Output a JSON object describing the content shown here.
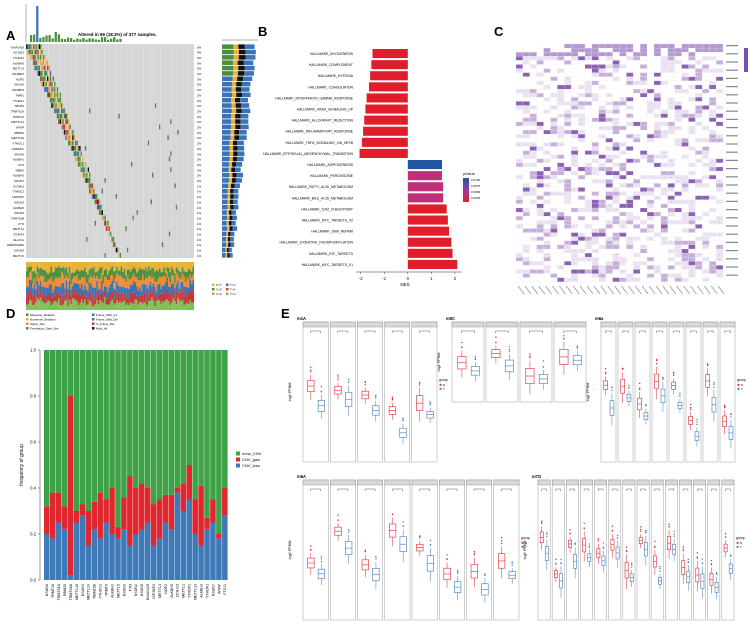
{
  "panels": {
    "A": {
      "letter": "A",
      "summary": "Altered in 69 (18.3%) of 377 samples.",
      "genes": [
        "KIAA1429",
        "ZC3H13",
        "YTHDF2",
        "ALKBH5",
        "METTL3",
        "IGF2BP2",
        "NOP2",
        "NSUN2",
        "IGF2BP3",
        "FMR1",
        "YTHDF1",
        "TRMT6",
        "TRMT61A",
        "TRMT10",
        "METTL14",
        "WTAP",
        "RBM15",
        "METTL16",
        "YTHDC1",
        "HNRNPC",
        "NSUN6",
        "ALKBH1",
        "FTO",
        "RBMX",
        "ALKBH3",
        "NSUN7",
        "ZC3H13",
        "YTHDC2",
        "LRPPRC",
        "NSUN3",
        "ALKBH5",
        "NSUN4",
        "TRMT61B",
        "FTO",
        "METTL1",
        "YTHDF3",
        "ELAVL1",
        "HNRNPA2B1",
        "NSUN5",
        "METTL5"
      ],
      "percents": [
        "5%",
        "4%",
        "3%",
        "3%",
        "3%",
        "3%",
        "2%",
        "2%",
        "2%",
        "2%",
        "2%",
        "2%",
        "2%",
        "2%",
        "2%",
        "2%",
        "2%",
        "2%",
        "2%",
        "2%",
        "2%",
        "2%",
        "2%",
        "2%",
        "2%",
        "2%",
        "1%",
        "1%",
        "1%",
        "1%",
        "1%",
        "1%",
        "1%",
        "1%",
        "1%",
        "1%",
        "1%",
        "1%",
        "1%",
        "1%"
      ],
      "legend_variants": [
        "Missense_Mutation",
        "Nonsense_Mutation",
        "Splice_Site",
        "Translation_Start_Site",
        "Frame_Shift_Ins",
        "Frame_Shift_Del",
        "In_Frame_Del",
        "Multi_Hit"
      ],
      "legend_snv": [
        "C>T",
        "C>G",
        "C>A",
        "T>C",
        "T>A",
        "T>G"
      ],
      "colors": {
        "missense": "#4b8e3e",
        "nonsense": "#e8b23a",
        "splice": "#f08a33",
        "multi": "#111111",
        "frameshift": "#3a73b7",
        "inframe": "#c43b3b",
        "bg": "#d6d6d6"
      }
    },
    "B": {
      "letter": "B",
      "xlabel": "NES",
      "legend_title": "pvalue",
      "legend_ticks": [
        "0.0100",
        "0.0075",
        "0.0050",
        "0.0025"
      ]
    },
    "C": {
      "letter": "C"
    },
    "D": {
      "letter": "D",
      "ylabel": "frequency of group",
      "legend": [
        "none_CNV",
        "CNV_gain",
        "CNV_loss"
      ]
    },
    "E": {
      "letter": "E",
      "sub_titles": [
        "m1A",
        "m5C",
        "m6a",
        "m6A",
        "m7G"
      ],
      "ylabel": "log2 FPKM",
      "legend_title": "group",
      "legend_items": [
        "N",
        "T"
      ]
    }
  },
  "chart_data": [
    {
      "type": "bar",
      "panel": "B",
      "orientation": "horizontal",
      "categories": [
        "HALLMARK_MYOGENESIS",
        "HALLMARK_COMPLEMENT",
        "HALLMARK_HYPOXIA",
        "HALLMARK_COAGULATION",
        "HALLMARK_INTERFERON_GAMMA_RESPONSE",
        "HALLMARK_KRAS_SIGNALING_UP",
        "HALLMARK_ALLOGRAFT_REJECTION",
        "HALLMARK_INFLAMMATORY_RESPONSE",
        "HALLMARK_TNFA_SIGNALING_VIA_NFKB",
        "HALLMARK_EPITHELIAL_MESENCHYMAL_TRANSITION",
        "HALLMARK_ADIPOGENESIS",
        "HALLMARK_PEROXISOME",
        "HALLMARK_FATTY_ACID_METABOLISM",
        "HALLMARK_BILE_ACID_METABOLISM",
        "HALLMARK_G2M_CHECKPOINT",
        "HALLMARK_MYC_TARGETS_V2",
        "HALLMARK_DNA_REPAIR",
        "HALLMARK_OXIDATIVE_PHOSPHORYLATION",
        "HALLMARK_E2F_TARGETS",
        "HALLMARK_MYC_TARGETS_V1"
      ],
      "values": [
        -1.5,
        -1.55,
        -1.6,
        -1.65,
        -1.75,
        -1.8,
        -1.85,
        -1.9,
        -1.95,
        -2.05,
        1.45,
        1.45,
        1.5,
        1.5,
        1.65,
        1.7,
        1.75,
        1.85,
        1.9,
        2.1
      ],
      "pvalues": [
        0.001,
        0.001,
        0.001,
        0.001,
        0.001,
        0.001,
        0.001,
        0.001,
        0.001,
        0.001,
        0.01,
        0.006,
        0.005,
        0.005,
        0.001,
        0.001,
        0.001,
        0.001,
        0.001,
        0.001
      ],
      "xlabel": "NES",
      "xticks": [
        "-2",
        "-1",
        "0",
        "1",
        "2"
      ],
      "xlim": [
        -2.2,
        2.3
      ]
    },
    {
      "type": "bar",
      "panel": "D",
      "stacked": true,
      "categories": [
        "NSUN6",
        "TRMT10",
        "TRMT61A",
        "RBM15",
        "TRMT61B",
        "METTL16",
        "NSUN4",
        "METTL14",
        "RBM15B",
        "YTHDC2",
        "TRMT6",
        "ALKBH1",
        "METTL5",
        "NSUN3",
        "FTO",
        "NSUN2",
        "NSUN5",
        "KIAA1429",
        "IGF2BP2",
        "METTL3",
        "NOP2",
        "ALKBH5",
        "ZC3H13",
        "METTL1",
        "YTHDF1",
        "METTL13",
        "ALKBH3",
        "YTHDF2",
        "NSUN7",
        "WTAP",
        "FTSJ1"
      ],
      "series": [
        {
          "name": "CNV_loss",
          "values": [
            0.2,
            0.18,
            0.25,
            0.22,
            0.02,
            0.25,
            0.28,
            0.15,
            0.22,
            0.18,
            0.25,
            0.2,
            0.18,
            0.22,
            0.15,
            0.2,
            0.22,
            0.25,
            0.15,
            0.18,
            0.25,
            0.22,
            0.38,
            0.3,
            0.35,
            0.2,
            0.15,
            0.22,
            0.25,
            0.18,
            0.28
          ]
        },
        {
          "name": "CNV_gain",
          "values": [
            0.12,
            0.2,
            0.13,
            0.1,
            0.78,
            0.05,
            0.05,
            0.15,
            0.12,
            0.2,
            0.1,
            0.2,
            0.05,
            0.14,
            0.3,
            0.2,
            0.2,
            0.15,
            0.18,
            0.17,
            0.12,
            0.15,
            0.02,
            0.12,
            0.15,
            0.15,
            0.26,
            0.05,
            0.1,
            0.02,
            0.12
          ]
        }
      ],
      "ylabel": "frequency of group",
      "ylim": [
        0,
        1
      ],
      "yticks": [
        "0.0",
        "0.2",
        "0.4",
        "0.6",
        "0.8",
        "1.0"
      ]
    }
  ]
}
